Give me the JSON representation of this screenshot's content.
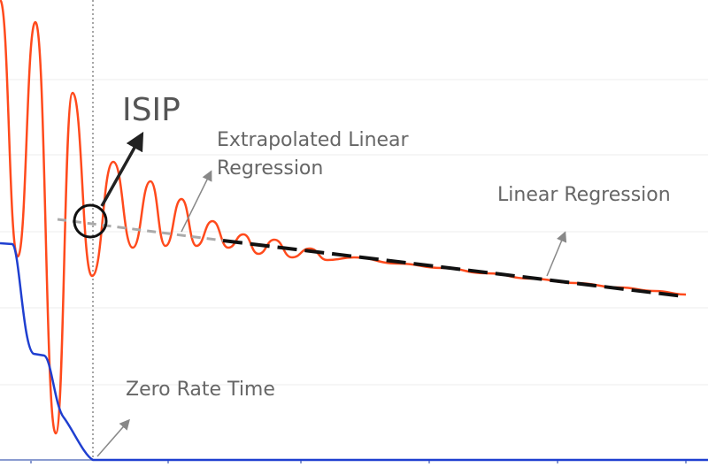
{
  "annotations": {
    "isip": "ISIP",
    "extrapolated": [
      "Extrapolated Linear",
      "Regression"
    ],
    "linear_regression": "Linear Regression",
    "zero_rate_time": "Zero Rate Time"
  }
}
